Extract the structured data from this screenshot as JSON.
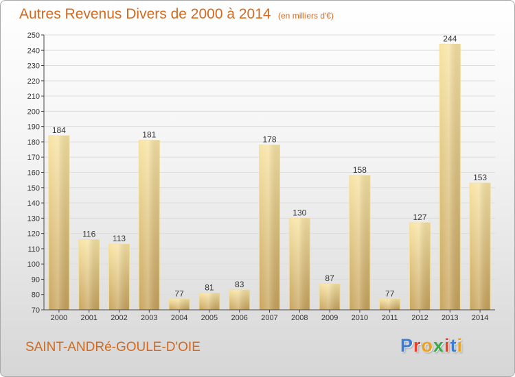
{
  "header": {
    "title": "Autres Revenus Divers de 2000 à 2014",
    "unit": "(en milliers d'€)"
  },
  "commune": "SAINT-ANDRé-GOULE-D'OIE",
  "logo": {
    "text": "Proxiti",
    "letters": [
      "P",
      "r",
      "o",
      "x",
      "i",
      "t",
      "i"
    ],
    "colors": [
      "#3a7bd5",
      "#e8402a",
      "#f0a020",
      "#3aa845",
      "#e8402a",
      "#3a7bd5",
      "#f0a020"
    ]
  },
  "colors": {
    "text_accent": "#d2691e",
    "bar_light": "#f7e1a0",
    "bar_dark": "#c9a55e",
    "grid": "#dddddd"
  },
  "chart_data": {
    "type": "bar",
    "title": "Autres Revenus Divers de 2000 à 2014",
    "categories": [
      "2000",
      "2001",
      "2002",
      "2003",
      "2004",
      "2005",
      "2006",
      "2007",
      "2008",
      "2009",
      "2010",
      "2011",
      "2012",
      "2013",
      "2014"
    ],
    "values": [
      184,
      116,
      113,
      181,
      77,
      81,
      83,
      178,
      130,
      87,
      158,
      77,
      127,
      244,
      153
    ],
    "ylim": [
      70,
      250
    ],
    "yticks": [
      70,
      80,
      90,
      100,
      110,
      120,
      130,
      140,
      150,
      160,
      170,
      180,
      190,
      200,
      210,
      220,
      230,
      240,
      250
    ],
    "data_labels": true,
    "grid": true,
    "legend": false
  }
}
